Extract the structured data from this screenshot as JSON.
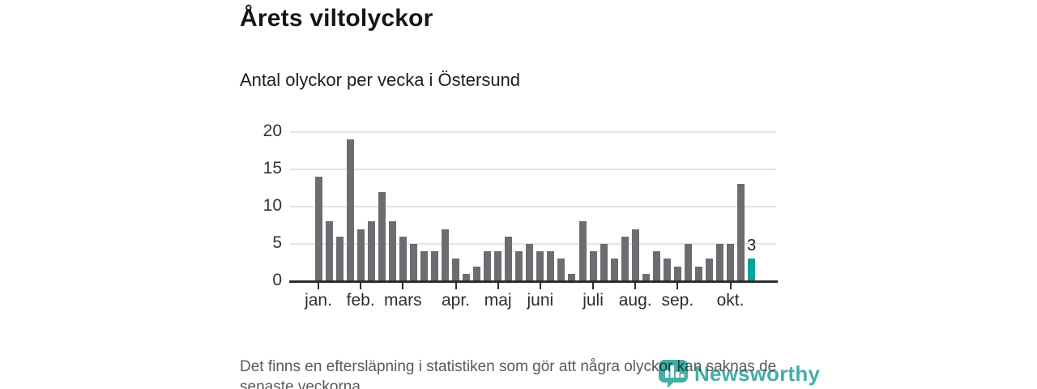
{
  "chart_data": {
    "type": "bar",
    "title": "Årets viltolyckor",
    "subtitle": "Antal olyckor per vecka i Östersund",
    "xlabel": "",
    "ylabel": "",
    "ylim": [
      0,
      20
    ],
    "y_ticks": [
      0,
      5,
      10,
      15,
      20
    ],
    "grid": "horizontal",
    "x_unit": "vecka",
    "values": [
      14,
      8,
      6,
      19,
      7,
      8,
      12,
      8,
      6,
      5,
      4,
      4,
      7,
      3,
      1,
      2,
      4,
      4,
      6,
      4,
      5,
      4,
      4,
      3,
      1,
      8,
      4,
      5,
      3,
      6,
      7,
      1,
      4,
      3,
      2,
      5,
      2,
      3,
      5,
      5,
      13,
      3
    ],
    "highlight_last": true,
    "last_value_label": "3",
    "month_ticks": [
      {
        "label": "jan.",
        "week": 1
      },
      {
        "label": "feb.",
        "week": 5
      },
      {
        "label": "mars",
        "week": 9
      },
      {
        "label": "apr.",
        "week": 14
      },
      {
        "label": "maj",
        "week": 18
      },
      {
        "label": "juni",
        "week": 22
      },
      {
        "label": "juli",
        "week": 27
      },
      {
        "label": "aug.",
        "week": 31
      },
      {
        "label": "sep.",
        "week": 35
      },
      {
        "label": "okt.",
        "week": 40
      }
    ],
    "colors": {
      "bar": "#6c6c71",
      "highlight": "#00a49b",
      "axis": "#2d2d2d",
      "gridline": "#e4e4e4"
    }
  },
  "footer": {
    "lines": [
      "Det finns en eftersläpning i statistiken som gör att några olyckor kan saknas de",
      "senaste veckorna."
    ]
  },
  "logo": {
    "name": "Newsworthy",
    "color": "#35a79e"
  }
}
